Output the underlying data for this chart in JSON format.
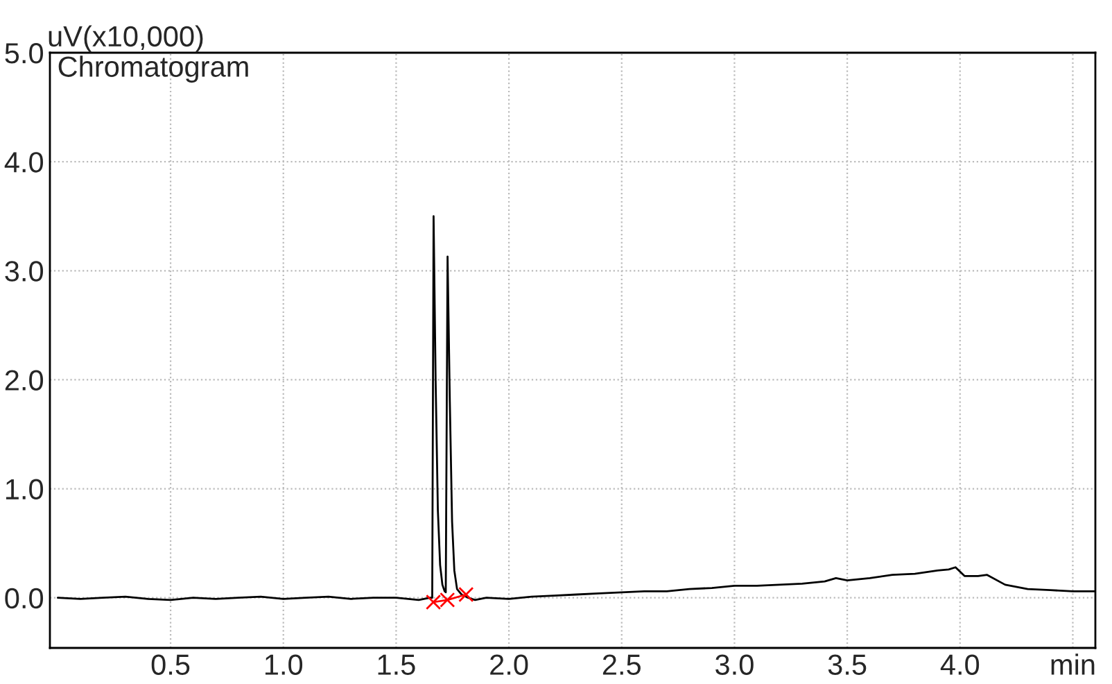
{
  "chart_data": {
    "type": "line",
    "ylabel": "uV(x10,000)",
    "annotations": [
      "Chromatogram"
    ],
    "xlim": [
      -0.035,
      4.6
    ],
    "ylim": [
      -0.46,
      5.0
    ],
    "xticks": [
      0.5,
      {
        "value": 1.0,
        "label": "1.0"
      },
      1.5,
      {
        "value": 2.0,
        "label": "2.0"
      },
      2.5,
      {
        "value": 3.0,
        "label": "3.0"
      },
      3.5,
      {
        "value": 4.0,
        "label": "4.0"
      },
      {
        "value": 4.5,
        "label": "min"
      }
    ],
    "yticks": [
      {
        "value": 0.0,
        "label": "0.0"
      },
      {
        "value": 1.0,
        "label": "1.0"
      },
      {
        "value": 2.0,
        "label": "2.0"
      },
      {
        "value": 3.0,
        "label": "3.0"
      },
      {
        "value": 4.0,
        "label": "4.0"
      },
      {
        "value": 5.0,
        "label": "5.0"
      }
    ],
    "grid": true,
    "legend": false,
    "series": [
      {
        "color": "#000000",
        "line_style": "solid",
        "marker": "none",
        "x": [
          0.0,
          0.1,
          0.2,
          0.3,
          0.4,
          0.5,
          0.6,
          0.7,
          0.8,
          0.9,
          1.0,
          1.1,
          1.2,
          1.3,
          1.4,
          1.5,
          1.6,
          1.65,
          1.66,
          1.666,
          1.675,
          1.685,
          1.695,
          1.705,
          1.715,
          1.72,
          1.728,
          1.738,
          1.748,
          1.758,
          1.77,
          1.79,
          1.82,
          1.85,
          1.9,
          2.0,
          2.1,
          2.2,
          2.3,
          2.4,
          2.5,
          2.6,
          2.7,
          2.8,
          2.9,
          3.0,
          3.1,
          3.2,
          3.3,
          3.4,
          3.45,
          3.5,
          3.6,
          3.7,
          3.8,
          3.9,
          3.95,
          3.98,
          4.02,
          4.08,
          4.12,
          4.2,
          4.3,
          4.4,
          4.5,
          4.6
        ],
        "values": [
          0.0,
          -0.01,
          0.0,
          0.01,
          -0.01,
          -0.02,
          0.0,
          -0.01,
          0.0,
          0.01,
          -0.01,
          0.0,
          0.01,
          -0.01,
          0.0,
          0.0,
          -0.02,
          0.0,
          0.0,
          3.5,
          2.0,
          0.8,
          0.3,
          0.12,
          0.06,
          0.05,
          3.13,
          1.8,
          0.7,
          0.25,
          0.08,
          0.03,
          0.0,
          -0.02,
          0.0,
          -0.01,
          0.01,
          0.02,
          0.03,
          0.04,
          0.05,
          0.06,
          0.06,
          0.08,
          0.09,
          0.11,
          0.11,
          0.12,
          0.13,
          0.15,
          0.18,
          0.16,
          0.18,
          0.21,
          0.22,
          0.25,
          0.26,
          0.28,
          0.2,
          0.2,
          0.21,
          0.12,
          0.08,
          0.07,
          0.06,
          0.06
        ]
      },
      {
        "type": "line",
        "color": "#ff0000",
        "line_style": "solid",
        "marker": "cross",
        "x": [
          1.665,
          1.727,
          1.81
        ],
        "values": [
          -0.04,
          -0.02,
          0.03
        ]
      }
    ]
  }
}
